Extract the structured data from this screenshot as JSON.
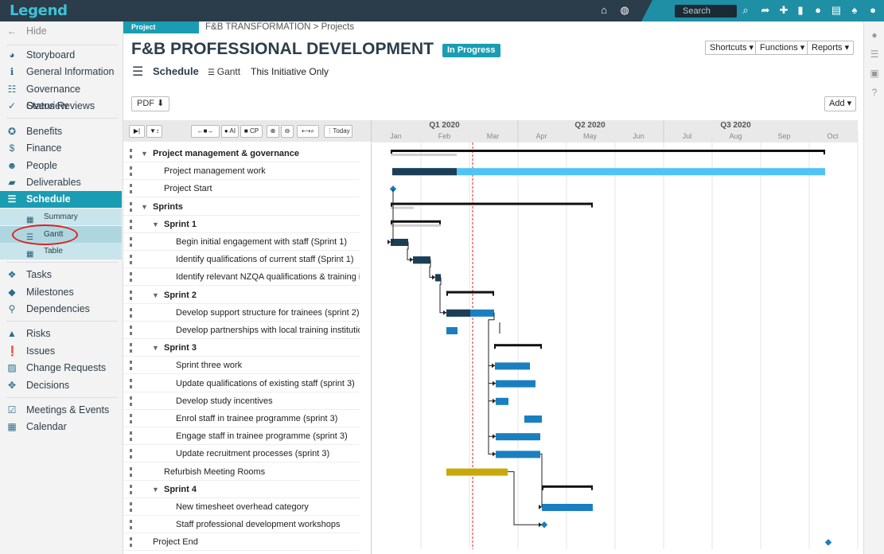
{
  "app": {
    "logo": "Legend"
  },
  "topbar": {
    "search_placeholder": "Search"
  },
  "sidebar": {
    "hide_label": "Hide",
    "items": [
      {
        "label": "Storyboard",
        "icon": "dashboard-icon"
      },
      {
        "label": "General Information",
        "icon": "info-icon"
      },
      {
        "label": "Governance Overview",
        "icon": "hierarchy-icon"
      },
      {
        "label": "Status Reviews",
        "icon": "check-icon"
      },
      {
        "label": "Benefits",
        "icon": "award-icon"
      },
      {
        "label": "Finance",
        "icon": "dollar-icon"
      },
      {
        "label": "People",
        "icon": "people-icon"
      },
      {
        "label": "Deliverables",
        "icon": "truck-icon"
      },
      {
        "label": "Schedule",
        "icon": "schedule-icon"
      },
      {
        "label": "Tasks",
        "icon": "cubes-icon"
      },
      {
        "label": "Milestones",
        "icon": "diamond-icon"
      },
      {
        "label": "Dependencies",
        "icon": "link-icon"
      },
      {
        "label": "Risks",
        "icon": "warning-icon"
      },
      {
        "label": "Issues",
        "icon": "exclamation-icon"
      },
      {
        "label": "Change Requests",
        "icon": "chart-icon"
      },
      {
        "label": "Decisions",
        "icon": "arrows-icon"
      },
      {
        "label": "Meetings & Events",
        "icon": "calendar-check-icon"
      },
      {
        "label": "Calendar",
        "icon": "calendar-icon"
      }
    ],
    "schedule_sub": [
      {
        "label": "Summary"
      },
      {
        "label": "Gantt"
      },
      {
        "label": "Table"
      }
    ]
  },
  "header": {
    "project_tag": "Project",
    "breadcrumb": "F&B TRANSFORMATION > Projects",
    "title": "F&B PROFESSIONAL DEVELOPMENT",
    "status": "In Progress",
    "shortcuts": "Shortcuts",
    "functions": "Functions",
    "reports": "Reports"
  },
  "schedule": {
    "title": "Schedule",
    "tab": "Gantt",
    "filter": "This Initiative Only",
    "pdf": "PDF",
    "add": "Add"
  },
  "toolbar": {
    "ai": "AI",
    "cp": "CP",
    "today": "Today"
  },
  "timeline": {
    "quarters": [
      "Q1 2020",
      "Q2 2020",
      "Q3 2020"
    ],
    "months": [
      "Jan",
      "Feb",
      "Mar",
      "Apr",
      "May",
      "Jun",
      "Jul",
      "Aug",
      "Sep",
      "Oct"
    ]
  },
  "tasks": [
    {
      "label": "Project management & governance",
      "level": 0,
      "group": true
    },
    {
      "label": "Project management work",
      "level": 1
    },
    {
      "label": "Project Start",
      "level": 1
    },
    {
      "label": "Sprints",
      "level": 0,
      "group": true
    },
    {
      "label": "Sprint 1",
      "level": 1,
      "group": true
    },
    {
      "label": "Begin initial engagement with staff (Sprint 1)",
      "level": 2
    },
    {
      "label": "Identify qualifications of current staff (Sprint 1)",
      "level": 2
    },
    {
      "label": "Identify relevant NZQA qualifications & training ins",
      "level": 2
    },
    {
      "label": "Sprint 2",
      "level": 1,
      "group": true
    },
    {
      "label": "Develop support structure for trainees (sprint 2)",
      "level": 2
    },
    {
      "label": "Develop partnerships with local training institutions",
      "level": 2
    },
    {
      "label": "Sprint 3",
      "level": 1,
      "group": true
    },
    {
      "label": "Sprint three work",
      "level": 2
    },
    {
      "label": "Update qualifications of existing staff (sprint 3)",
      "level": 2
    },
    {
      "label": "Develop study incentives",
      "level": 2
    },
    {
      "label": "Enrol staff in trainee programme (sprint 3)",
      "level": 2
    },
    {
      "label": "Engage staff in trainee programme (sprint 3)",
      "level": 2
    },
    {
      "label": "Update recruitment processes (sprint 3)",
      "level": 2
    },
    {
      "label": "Refurbish Meeting Rooms",
      "level": 1
    },
    {
      "label": "Sprint 4",
      "level": 1,
      "group": true
    },
    {
      "label": "New timesheet overhead category",
      "level": 2
    },
    {
      "label": "Staff professional development workshops",
      "level": 2
    },
    {
      "label": "Project End",
      "level": 0
    }
  ],
  "colors": {
    "teal": "#1a9db3",
    "dark": "#1b3e55",
    "blue": "#1a7fc0",
    "light": "#4fc3f7",
    "gold": "#c9a80a",
    "grey": "#d0d0d0",
    "today": "#e02020"
  }
}
